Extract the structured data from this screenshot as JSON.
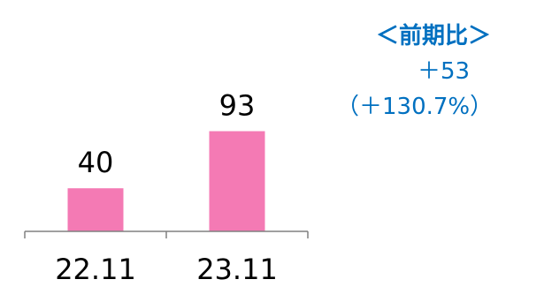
{
  "chart_data": {
    "type": "bar",
    "categories": [
      "22.11",
      "23.11"
    ],
    "values": [
      40,
      93
    ],
    "data_labels": [
      "40",
      "93"
    ],
    "title": "",
    "xlabel": "",
    "ylabel": "",
    "grid": false,
    "bar_color": "#F47AB4",
    "axis_color": "#808080"
  },
  "callout": {
    "title": "＜前期比＞",
    "diff": "＋53",
    "pct": "（＋130.7%）",
    "color": "#0070C0"
  }
}
